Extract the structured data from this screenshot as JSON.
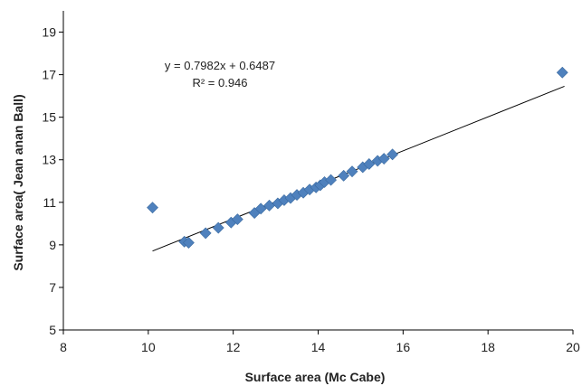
{
  "chart_data": {
    "type": "scatter",
    "title": "",
    "xlabel": "Surface area (Mc Cabe)",
    "ylabel": "Surface area( Jean anan Ball)",
    "xlim": [
      8,
      20
    ],
    "ylim": [
      5,
      20
    ],
    "x_ticks": [
      8,
      10,
      12,
      14,
      16,
      18,
      20
    ],
    "y_ticks": [
      5,
      7,
      9,
      11,
      13,
      15,
      17,
      19
    ],
    "grid": false,
    "legend": "none",
    "marker_color": "#4f81bd",
    "trendline_color": "#000000",
    "points": [
      {
        "x": 10.1,
        "y": 10.75
      },
      {
        "x": 10.85,
        "y": 9.15
      },
      {
        "x": 10.95,
        "y": 9.1
      },
      {
        "x": 11.35,
        "y": 9.55
      },
      {
        "x": 11.65,
        "y": 9.8
      },
      {
        "x": 11.95,
        "y": 10.05
      },
      {
        "x": 12.1,
        "y": 10.2
      },
      {
        "x": 12.5,
        "y": 10.5
      },
      {
        "x": 12.65,
        "y": 10.7
      },
      {
        "x": 12.85,
        "y": 10.85
      },
      {
        "x": 13.05,
        "y": 10.95
      },
      {
        "x": 13.2,
        "y": 11.1
      },
      {
        "x": 13.35,
        "y": 11.2
      },
      {
        "x": 13.5,
        "y": 11.35
      },
      {
        "x": 13.65,
        "y": 11.45
      },
      {
        "x": 13.8,
        "y": 11.6
      },
      {
        "x": 13.95,
        "y": 11.7
      },
      {
        "x": 14.05,
        "y": 11.8
      },
      {
        "x": 14.15,
        "y": 11.95
      },
      {
        "x": 14.3,
        "y": 12.05
      },
      {
        "x": 14.6,
        "y": 12.25
      },
      {
        "x": 14.8,
        "y": 12.45
      },
      {
        "x": 15.05,
        "y": 12.65
      },
      {
        "x": 15.2,
        "y": 12.8
      },
      {
        "x": 15.4,
        "y": 12.95
      },
      {
        "x": 15.55,
        "y": 13.05
      },
      {
        "x": 15.75,
        "y": 13.25
      },
      {
        "x": 19.75,
        "y": 17.1
      }
    ],
    "trendline": {
      "x_range": [
        10.1,
        19.8
      ],
      "slope": 0.7982,
      "intercept": 0.6487,
      "equation": "y = 0.7982x + 0.6487",
      "r_squared": "R² = 0.946"
    }
  }
}
